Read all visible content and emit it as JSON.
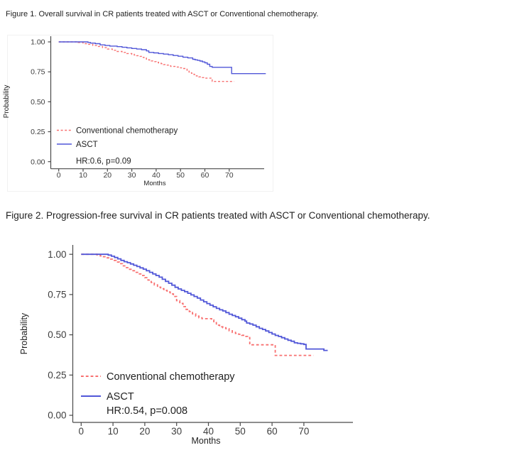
{
  "theme": {
    "background": "#ffffff",
    "axis_color": "#4a4a4a",
    "tick_text_color": "#3d3d3d",
    "title_color": "#1f1f1f",
    "legend_text_color": "#222222",
    "asct_color": "#5157d8",
    "conventional_color": "#f87070"
  },
  "chart_data": [
    {
      "type": "line",
      "subtype": "kaplan-meier-step",
      "title": "Figure 1. Overall survival in CR patients treated with ASCT or Conventional chemotherapy.",
      "xlabel": "Months",
      "ylabel": "Probability",
      "xlim": [
        0,
        85
      ],
      "ylim": [
        0,
        1
      ],
      "grid": false,
      "legend_position": "inside-bottom-left",
      "annotation": "HR:0.6, p=0.09",
      "xticks": [
        0,
        10,
        20,
        30,
        40,
        50,
        60,
        70
      ],
      "ytick_values": [
        0,
        0.25,
        0.5,
        0.75,
        1
      ],
      "ytick_labels": [
        "0.00",
        "0.25",
        "0.50",
        "0.75",
        "1.00"
      ],
      "series": [
        {
          "name": "Conventional chemotherapy",
          "color": "#f87070",
          "dashed": true,
          "points": [
            [
              0,
              1.0
            ],
            [
              8,
              0.995
            ],
            [
              10,
              0.985
            ],
            [
              12,
              0.98
            ],
            [
              14,
              0.97
            ],
            [
              16,
              0.962
            ],
            [
              18,
              0.952
            ],
            [
              20,
              0.94
            ],
            [
              22,
              0.93
            ],
            [
              24,
              0.92
            ],
            [
              26,
              0.912
            ],
            [
              28,
              0.903
            ],
            [
              30,
              0.896
            ],
            [
              31,
              0.89
            ],
            [
              32,
              0.885
            ],
            [
              33,
              0.879
            ],
            [
              34,
              0.871
            ],
            [
              35,
              0.864
            ],
            [
              36,
              0.856
            ],
            [
              37,
              0.849
            ],
            [
              38,
              0.841
            ],
            [
              39,
              0.835
            ],
            [
              40,
              0.83
            ],
            [
              41,
              0.824
            ],
            [
              42,
              0.818
            ],
            [
              43,
              0.811
            ],
            [
              44,
              0.806
            ],
            [
              45,
              0.8
            ],
            [
              46,
              0.795
            ],
            [
              48,
              0.79
            ],
            [
              50,
              0.783
            ],
            [
              51,
              0.778
            ],
            [
              52,
              0.772
            ],
            [
              52.7,
              0.762
            ],
            [
              53.5,
              0.748
            ],
            [
              54.5,
              0.738
            ],
            [
              55.5,
              0.728
            ],
            [
              56.5,
              0.716
            ],
            [
              57.5,
              0.708
            ],
            [
              58.5,
              0.702
            ],
            [
              59.5,
              0.697
            ],
            [
              62.5,
              0.692
            ],
            [
              63,
              0.67
            ],
            [
              72,
              0.67
            ]
          ]
        },
        {
          "name": "ASCT",
          "color": "#5157d8",
          "dashed": false,
          "points": [
            [
              0,
              1.0
            ],
            [
              12,
              0.995
            ],
            [
              13,
              0.99
            ],
            [
              15,
              0.985
            ],
            [
              17,
              0.975
            ],
            [
              19,
              0.97
            ],
            [
              21,
              0.965
            ],
            [
              24,
              0.96
            ],
            [
              26,
              0.955
            ],
            [
              28,
              0.95
            ],
            [
              30,
              0.945
            ],
            [
              32,
              0.94
            ],
            [
              34,
              0.935
            ],
            [
              36,
              0.925
            ],
            [
              37,
              0.912
            ],
            [
              39,
              0.908
            ],
            [
              41,
              0.903
            ],
            [
              43,
              0.898
            ],
            [
              45,
              0.893
            ],
            [
              47,
              0.886
            ],
            [
              49,
              0.88
            ],
            [
              51,
              0.872
            ],
            [
              53,
              0.866
            ],
            [
              55,
              0.855
            ],
            [
              56,
              0.85
            ],
            [
              57,
              0.845
            ],
            [
              58,
              0.84
            ],
            [
              59,
              0.833
            ],
            [
              60,
              0.825
            ],
            [
              61,
              0.813
            ],
            [
              62,
              0.795
            ],
            [
              63,
              0.788
            ],
            [
              70.5,
              0.788
            ],
            [
              71,
              0.735
            ],
            [
              85,
              0.735
            ]
          ]
        }
      ]
    },
    {
      "type": "line",
      "subtype": "kaplan-meier-step",
      "title": "Figure 2. Progression-free survival in CR patients treated with ASCT or Conventional chemotherapy.",
      "xlabel": "Months",
      "ylabel": "Probability",
      "xlim": [
        0,
        80
      ],
      "ylim": [
        0,
        1
      ],
      "grid": false,
      "legend_position": "inside-bottom-left",
      "annotation": "HR:0.54, p=0.008",
      "xticks": [
        0,
        10,
        20,
        30,
        40,
        50,
        60,
        70
      ],
      "ytick_values": [
        0,
        0.25,
        0.5,
        0.75,
        1
      ],
      "ytick_labels": [
        "0.00",
        "0.25",
        "0.50",
        "0.75",
        "1.00"
      ],
      "series": [
        {
          "name": "Conventional chemotherapy",
          "color": "#f87070",
          "dashed": true,
          "points": [
            [
              0,
              1.0
            ],
            [
              5,
              0.996
            ],
            [
              6,
              0.99
            ],
            [
              7,
              0.985
            ],
            [
              8,
              0.978
            ],
            [
              9,
              0.97
            ],
            [
              10,
              0.962
            ],
            [
              11,
              0.952
            ],
            [
              12,
              0.942
            ],
            [
              13,
              0.928
            ],
            [
              14,
              0.917
            ],
            [
              15,
              0.907
            ],
            [
              16,
              0.898
            ],
            [
              17,
              0.888
            ],
            [
              18,
              0.878
            ],
            [
              19,
              0.868
            ],
            [
              20,
              0.855
            ],
            [
              21,
              0.84
            ],
            [
              22,
              0.825
            ],
            [
              23,
              0.81
            ],
            [
              24,
              0.796
            ],
            [
              25,
              0.786
            ],
            [
              26,
              0.776
            ],
            [
              27,
              0.766
            ],
            [
              28,
              0.754
            ],
            [
              29,
              0.738
            ],
            [
              30,
              0.712
            ],
            [
              31,
              0.695
            ],
            [
              32,
              0.675
            ],
            [
              33,
              0.658
            ],
            [
              34,
              0.644
            ],
            [
              35,
              0.63
            ],
            [
              36,
              0.616
            ],
            [
              37,
              0.606
            ],
            [
              38,
              0.6
            ],
            [
              41,
              0.592
            ],
            [
              41.7,
              0.576
            ],
            [
              42.5,
              0.56
            ],
            [
              43.5,
              0.55
            ],
            [
              44.5,
              0.544
            ],
            [
              45.5,
              0.538
            ],
            [
              46.5,
              0.525
            ],
            [
              47.5,
              0.515
            ],
            [
              48.5,
              0.509
            ],
            [
              49.5,
              0.503
            ],
            [
              50.5,
              0.497
            ],
            [
              51.5,
              0.49
            ],
            [
              52.3,
              0.483
            ],
            [
              53,
              0.438
            ],
            [
              60.8,
              0.438
            ],
            [
              61,
              0.372
            ],
            [
              73,
              0.372
            ]
          ]
        },
        {
          "name": "ASCT",
          "color": "#5157d8",
          "dashed": false,
          "points": [
            [
              0,
              1.0
            ],
            [
              8.5,
              0.995
            ],
            [
              9.5,
              0.988
            ],
            [
              10.5,
              0.98
            ],
            [
              11.5,
              0.972
            ],
            [
              12.5,
              0.962
            ],
            [
              13.5,
              0.954
            ],
            [
              14.5,
              0.948
            ],
            [
              15.5,
              0.94
            ],
            [
              16.5,
              0.932
            ],
            [
              17.5,
              0.924
            ],
            [
              18.5,
              0.916
            ],
            [
              19.5,
              0.908
            ],
            [
              20.5,
              0.898
            ],
            [
              21.5,
              0.888
            ],
            [
              22.5,
              0.878
            ],
            [
              23.5,
              0.868
            ],
            [
              24.5,
              0.858
            ],
            [
              25.5,
              0.845
            ],
            [
              26.5,
              0.832
            ],
            [
              27.5,
              0.82
            ],
            [
              28.5,
              0.808
            ],
            [
              29.5,
              0.795
            ],
            [
              30.5,
              0.785
            ],
            [
              31.5,
              0.776
            ],
            [
              32.5,
              0.768
            ],
            [
              33.5,
              0.758
            ],
            [
              34.5,
              0.748
            ],
            [
              35.5,
              0.738
            ],
            [
              36.5,
              0.728
            ],
            [
              37.5,
              0.716
            ],
            [
              38.5,
              0.705
            ],
            [
              39.5,
              0.694
            ],
            [
              40.5,
              0.684
            ],
            [
              41.5,
              0.674
            ],
            [
              42.5,
              0.664
            ],
            [
              43.5,
              0.655
            ],
            [
              44.5,
              0.648
            ],
            [
              45.5,
              0.638
            ],
            [
              46.5,
              0.628
            ],
            [
              47.5,
              0.62
            ],
            [
              48.5,
              0.612
            ],
            [
              49.5,
              0.603
            ],
            [
              50.5,
              0.594
            ],
            [
              51.5,
              0.585
            ],
            [
              52,
              0.573
            ],
            [
              53,
              0.567
            ],
            [
              54,
              0.56
            ],
            [
              55,
              0.55
            ],
            [
              56,
              0.54
            ],
            [
              57,
              0.533
            ],
            [
              58,
              0.524
            ],
            [
              59,
              0.514
            ],
            [
              60,
              0.505
            ],
            [
              61,
              0.496
            ],
            [
              62,
              0.49
            ],
            [
              63,
              0.482
            ],
            [
              64,
              0.474
            ],
            [
              65,
              0.466
            ],
            [
              66,
              0.46
            ],
            [
              67,
              0.45
            ],
            [
              68,
              0.447
            ],
            [
              69,
              0.444
            ],
            [
              70,
              0.44
            ],
            [
              70.7,
              0.412
            ],
            [
              76,
              0.412
            ],
            [
              76.3,
              0.403
            ],
            [
              77.5,
              0.403
            ]
          ]
        }
      ]
    }
  ]
}
